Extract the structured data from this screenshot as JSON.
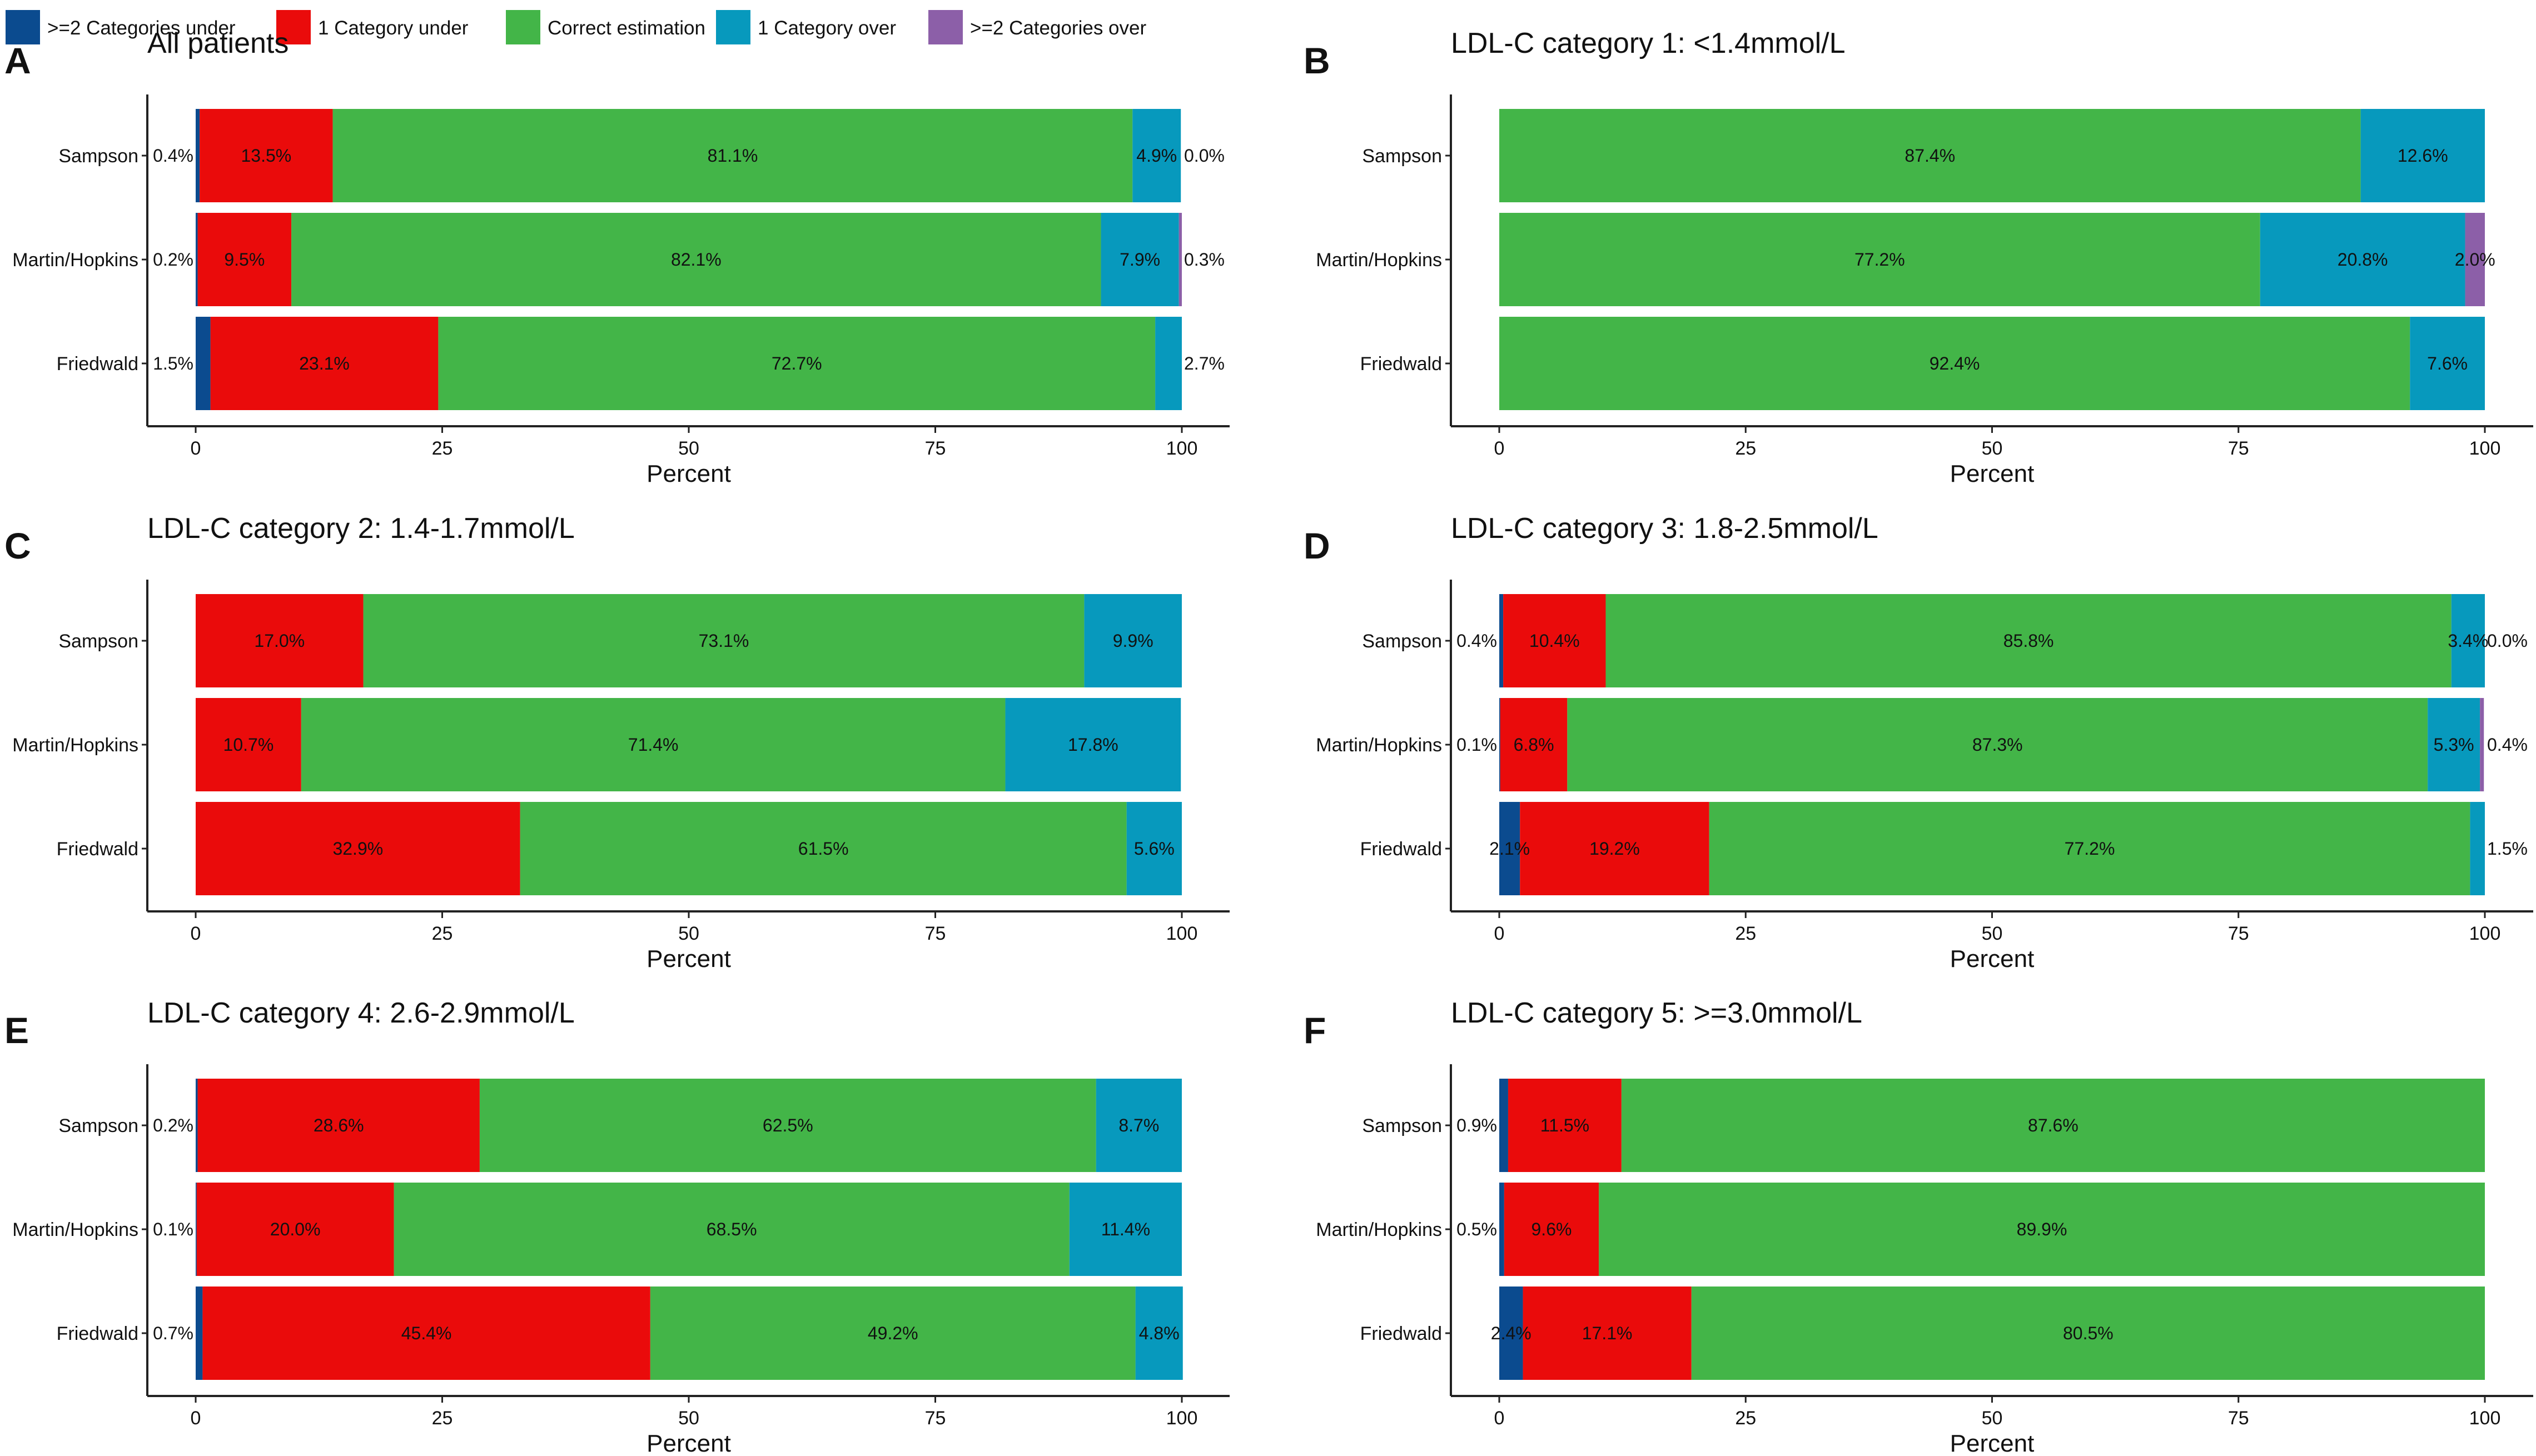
{
  "legend": [
    {
      "key": "ge2_under",
      "label": ">=2 Categories under",
      "color": "#0b4b8f"
    },
    {
      "key": "under1",
      "label": "1 Category under",
      "color": "#ea0b0b"
    },
    {
      "key": "correct",
      "label": "Correct estimation",
      "color": "#43b548"
    },
    {
      "key": "over1",
      "label": "1 Category over",
      "color": "#0799bd"
    },
    {
      "key": "ge2_over",
      "label": ">=2 Categories over",
      "color": "#8c5fa8"
    }
  ],
  "chart_data": [
    {
      "panel": "A",
      "title": "All patients",
      "type": "bar",
      "orientation": "horizontal",
      "stacked": true,
      "xlabel": "Percent",
      "xlim": [
        0,
        100
      ],
      "xticks": [
        "0",
        "25",
        "50",
        "75",
        "100"
      ],
      "categories": [
        "Sampson",
        "Martin/Hopkins",
        "Friedwald"
      ],
      "series": [
        {
          "name": ">=2 Categories under",
          "values": [
            0.4,
            0.2,
            1.5
          ],
          "labels": [
            "0.4%",
            "0.2%",
            "1.5%"
          ]
        },
        {
          "name": "1 Category under",
          "values": [
            13.5,
            9.5,
            23.1
          ],
          "labels": [
            "13.5%",
            "9.5%",
            "23.1%"
          ]
        },
        {
          "name": "Correct estimation",
          "values": [
            81.1,
            82.1,
            72.7
          ],
          "labels": [
            "81.1%",
            "82.1%",
            "72.7%"
          ]
        },
        {
          "name": "1 Category over",
          "values": [
            4.9,
            7.9,
            2.7
          ],
          "labels": [
            "4.9%",
            "7.9%",
            "2.7%"
          ]
        },
        {
          "name": ">=2 Categories over",
          "values": [
            0.0,
            0.3,
            0
          ],
          "labels": [
            "0.0%",
            "0.3%",
            ""
          ]
        }
      ]
    },
    {
      "panel": "B",
      "title": "LDL-C category 1: <1.4mmol/L",
      "type": "bar",
      "orientation": "horizontal",
      "stacked": true,
      "xlabel": "Percent",
      "xlim": [
        0,
        100
      ],
      "xticks": [
        "0",
        "25",
        "50",
        "75",
        "100"
      ],
      "categories": [
        "Sampson",
        "Martin/Hopkins",
        "Friedwald"
      ],
      "series": [
        {
          "name": ">=2 Categories under",
          "values": [
            0,
            0,
            0
          ],
          "labels": [
            "",
            "",
            ""
          ]
        },
        {
          "name": "1 Category under",
          "values": [
            0,
            0,
            0
          ],
          "labels": [
            "",
            "",
            ""
          ]
        },
        {
          "name": "Correct estimation",
          "values": [
            87.4,
            77.2,
            92.4
          ],
          "labels": [
            "87.4%",
            "77.2%",
            "92.4%"
          ]
        },
        {
          "name": "1 Category over",
          "values": [
            12.6,
            20.8,
            7.6
          ],
          "labels": [
            "12.6%",
            "20.8%",
            "7.6%"
          ]
        },
        {
          "name": ">=2 Categories over",
          "values": [
            0,
            2.0,
            0
          ],
          "labels": [
            "",
            "2.0%",
            ""
          ]
        }
      ]
    },
    {
      "panel": "C",
      "title": "LDL-C category 2: 1.4-1.7mmol/L",
      "type": "bar",
      "orientation": "horizontal",
      "stacked": true,
      "xlabel": "Percent",
      "xlim": [
        0,
        100
      ],
      "xticks": [
        "0",
        "25",
        "50",
        "75",
        "100"
      ],
      "categories": [
        "Sampson",
        "Martin/Hopkins",
        "Friedwald"
      ],
      "series": [
        {
          "name": ">=2 Categories under",
          "values": [
            0,
            0,
            0
          ],
          "labels": [
            "",
            "",
            ""
          ]
        },
        {
          "name": "1 Category under",
          "values": [
            17.0,
            10.7,
            32.9
          ],
          "labels": [
            "17.0%",
            "10.7%",
            "32.9%"
          ]
        },
        {
          "name": "Correct estimation",
          "values": [
            73.1,
            71.4,
            61.5
          ],
          "labels": [
            "73.1%",
            "71.4%",
            "61.5%"
          ]
        },
        {
          "name": "1 Category over",
          "values": [
            9.9,
            17.8,
            5.6
          ],
          "labels": [
            "9.9%",
            "17.8%",
            "5.6%"
          ]
        },
        {
          "name": ">=2 Categories over",
          "values": [
            0,
            0,
            0
          ],
          "labels": [
            "",
            "",
            ""
          ]
        }
      ]
    },
    {
      "panel": "D",
      "title": "LDL-C category 3: 1.8-2.5mmol/L",
      "type": "bar",
      "orientation": "horizontal",
      "stacked": true,
      "xlabel": "Percent",
      "xlim": [
        0,
        100
      ],
      "xticks": [
        "0",
        "25",
        "50",
        "75",
        "100"
      ],
      "categories": [
        "Sampson",
        "Martin/Hopkins",
        "Friedwald"
      ],
      "series": [
        {
          "name": ">=2 Categories under",
          "values": [
            0.4,
            0.1,
            2.1
          ],
          "labels": [
            "0.4%",
            "0.1%",
            "2.1%"
          ]
        },
        {
          "name": "1 Category under",
          "values": [
            10.4,
            6.8,
            19.2
          ],
          "labels": [
            "10.4%",
            "6.8%",
            "19.2%"
          ]
        },
        {
          "name": "Correct estimation",
          "values": [
            85.8,
            87.3,
            77.2
          ],
          "labels": [
            "85.8%",
            "87.3%",
            "77.2%"
          ]
        },
        {
          "name": "1 Category over",
          "values": [
            3.4,
            5.3,
            1.5
          ],
          "labels": [
            "3.4%",
            "5.3%",
            "1.5%"
          ]
        },
        {
          "name": ">=2 Categories over",
          "values": [
            0.0,
            0.4,
            0
          ],
          "labels": [
            "0.0%",
            "0.4%",
            ""
          ]
        }
      ]
    },
    {
      "panel": "E",
      "title": "LDL-C category 4: 2.6-2.9mmol/L",
      "type": "bar",
      "orientation": "horizontal",
      "stacked": true,
      "xlabel": "Percent",
      "xlim": [
        0,
        100
      ],
      "xticks": [
        "0",
        "25",
        "50",
        "75",
        "100"
      ],
      "categories": [
        "Sampson",
        "Martin/Hopkins",
        "Friedwald"
      ],
      "series": [
        {
          "name": ">=2 Categories under",
          "values": [
            0.2,
            0.1,
            0.7
          ],
          "labels": [
            "0.2%",
            "0.1%",
            "0.7%"
          ]
        },
        {
          "name": "1 Category under",
          "values": [
            28.6,
            20.0,
            45.4
          ],
          "labels": [
            "28.6%",
            "20.0%",
            "45.4%"
          ]
        },
        {
          "name": "Correct estimation",
          "values": [
            62.5,
            68.5,
            49.2
          ],
          "labels": [
            "62.5%",
            "68.5%",
            "49.2%"
          ]
        },
        {
          "name": "1 Category over",
          "values": [
            8.7,
            11.4,
            4.8
          ],
          "labels": [
            "8.7%",
            "11.4%",
            "4.8%"
          ]
        },
        {
          "name": ">=2 Categories over",
          "values": [
            0,
            0,
            0
          ],
          "labels": [
            "",
            "",
            ""
          ]
        }
      ]
    },
    {
      "panel": "F",
      "title": "LDL-C category 5: >=3.0mmol/L",
      "type": "bar",
      "orientation": "horizontal",
      "stacked": true,
      "xlabel": "Percent",
      "xlim": [
        0,
        100
      ],
      "xticks": [
        "0",
        "25",
        "50",
        "75",
        "100"
      ],
      "categories": [
        "Sampson",
        "Martin/Hopkins",
        "Friedwald"
      ],
      "series": [
        {
          "name": ">=2 Categories under",
          "values": [
            0.9,
            0.5,
            2.4
          ],
          "labels": [
            "0.9%",
            "0.5%",
            "2.4%"
          ]
        },
        {
          "name": "1 Category under",
          "values": [
            11.5,
            9.6,
            17.1
          ],
          "labels": [
            "11.5%",
            "9.6%",
            "17.1%"
          ]
        },
        {
          "name": "Correct estimation",
          "values": [
            87.6,
            89.9,
            80.5
          ],
          "labels": [
            "87.6%",
            "89.9%",
            "80.5%"
          ]
        },
        {
          "name": "1 Category over",
          "values": [
            0,
            0,
            0
          ],
          "labels": [
            "",
            "",
            ""
          ]
        },
        {
          "name": ">=2 Categories over",
          "values": [
            0,
            0,
            0
          ],
          "labels": [
            "",
            "",
            ""
          ]
        }
      ]
    }
  ]
}
